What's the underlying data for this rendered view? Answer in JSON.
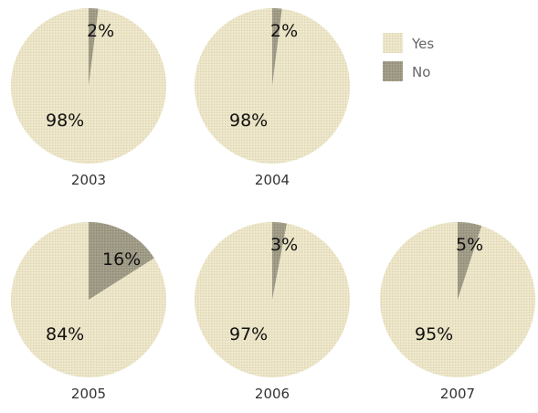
{
  "colors": {
    "yes": "#ebe4c6",
    "no": "#9e9a86"
  },
  "chart_data": {
    "type": "pie",
    "title": "",
    "legend": {
      "placement": "top-right",
      "entries": [
        {
          "label": "Yes",
          "color": "#ebe4c6"
        },
        {
          "label": "No",
          "color": "#9e9a86"
        }
      ]
    },
    "pies": [
      {
        "year": "2003",
        "slices": [
          {
            "name": "Yes",
            "value": 98,
            "label": "98%"
          },
          {
            "name": "No",
            "value": 2,
            "label": "2%"
          }
        ]
      },
      {
        "year": "2004",
        "slices": [
          {
            "name": "Yes",
            "value": 98,
            "label": "98%"
          },
          {
            "name": "No",
            "value": 2,
            "label": "2%"
          }
        ]
      },
      {
        "year": "2005",
        "slices": [
          {
            "name": "Yes",
            "value": 84,
            "label": "84%"
          },
          {
            "name": "No",
            "value": 16,
            "label": "16%"
          }
        ]
      },
      {
        "year": "2006",
        "slices": [
          {
            "name": "Yes",
            "value": 97,
            "label": "97%"
          },
          {
            "name": "No",
            "value": 3,
            "label": "3%"
          }
        ]
      },
      {
        "year": "2007",
        "slices": [
          {
            "name": "Yes",
            "value": 95,
            "label": "95%"
          },
          {
            "name": "No",
            "value": 5,
            "label": "5%"
          }
        ]
      }
    ]
  }
}
